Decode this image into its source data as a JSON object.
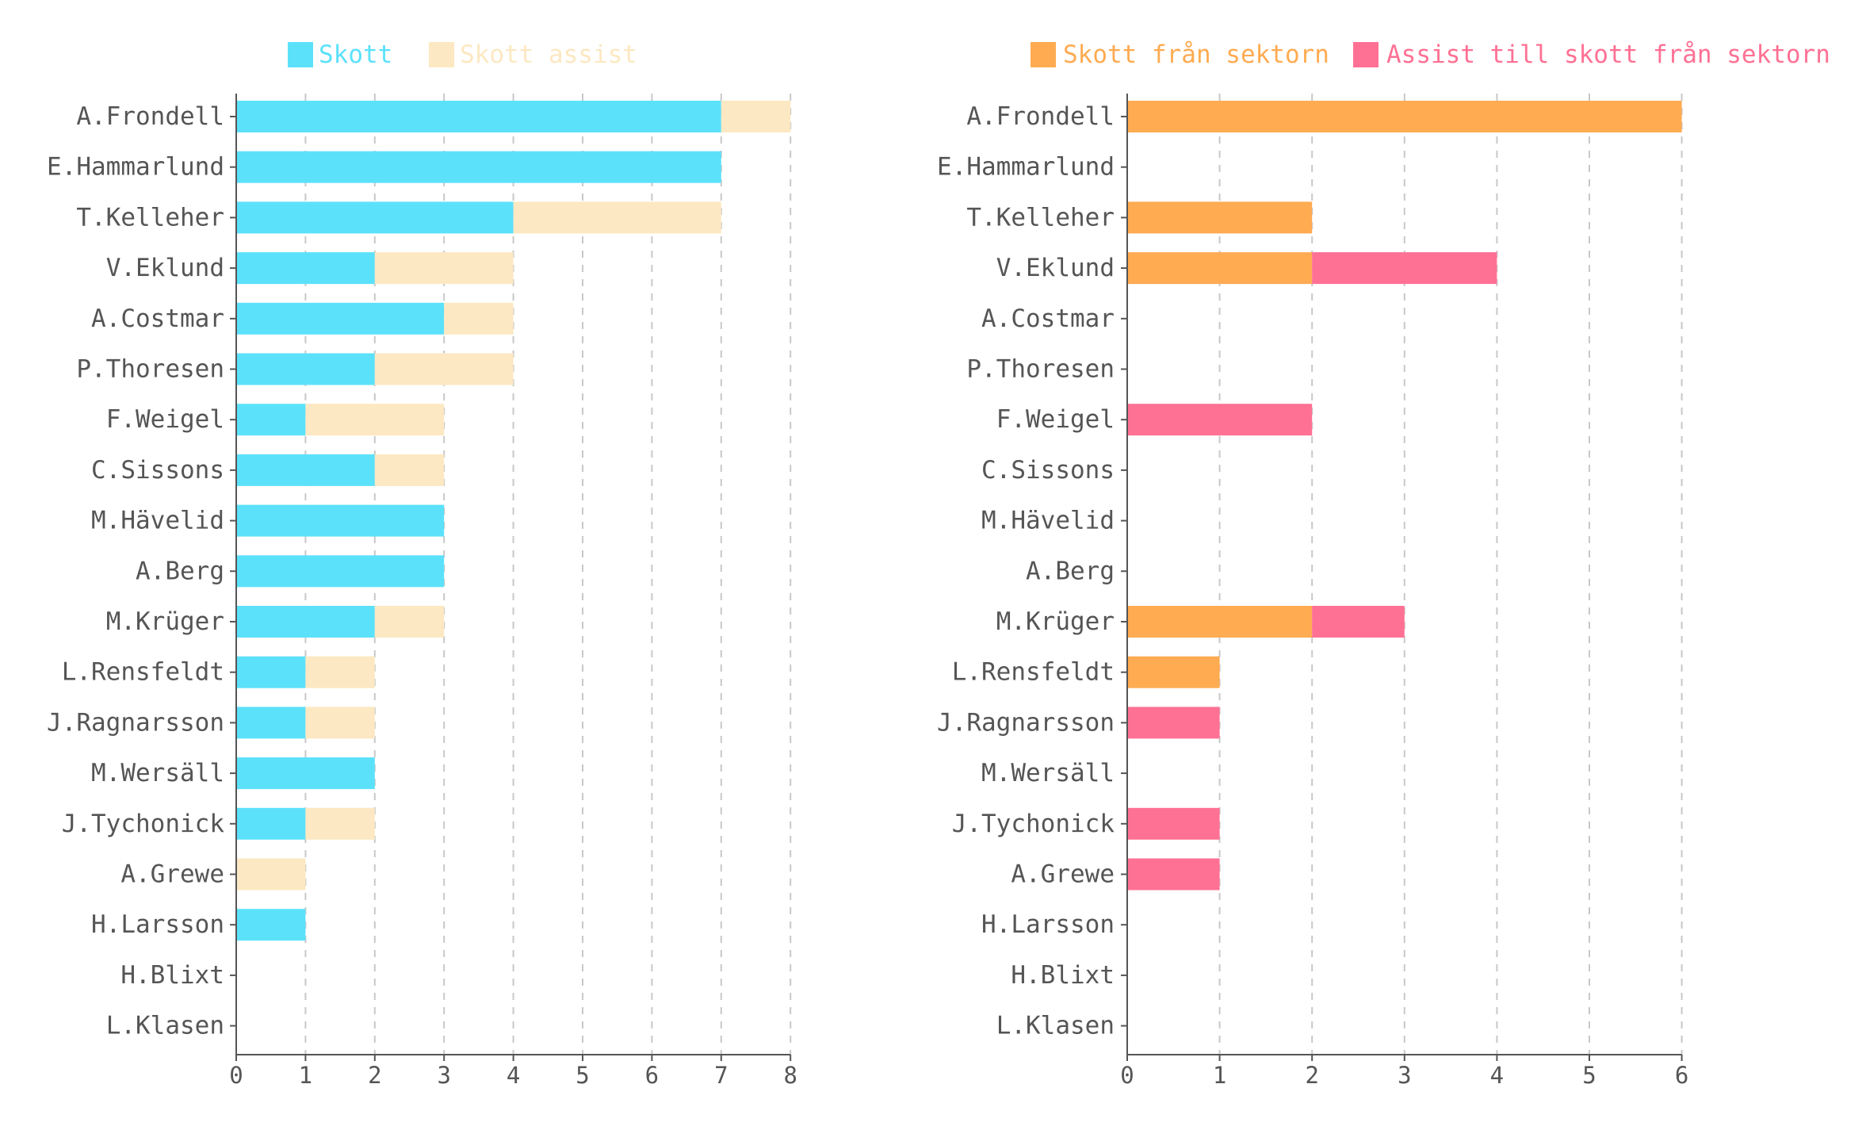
{
  "chart_data": [
    {
      "type": "bar",
      "orientation": "horizontal",
      "stacked": true,
      "categories": [
        "A.Frondell",
        "E.Hammarlund",
        "T.Kelleher",
        "V.Eklund",
        "A.Costmar",
        "P.Thoresen",
        "F.Weigel",
        "C.Sissons",
        "M.Hävelid",
        "A.Berg",
        "M.Krüger",
        "L.Rensfeldt",
        "J.Ragnarsson",
        "M.Wersäll",
        "J.Tychonick",
        "A.Grewe",
        "H.Larsson",
        "H.Blixt",
        "L.Klasen"
      ],
      "series": [
        {
          "name": "Skott",
          "color": "#5ce1fb",
          "values": [
            7,
            7,
            4,
            2,
            3,
            2,
            1,
            2,
            3,
            3,
            2,
            1,
            1,
            2,
            1,
            0,
            1,
            0,
            0
          ]
        },
        {
          "name": "Skott assist",
          "color": "#fce8c2",
          "values": [
            1,
            0,
            3,
            2,
            1,
            2,
            2,
            1,
            0,
            0,
            1,
            1,
            1,
            0,
            1,
            1,
            0,
            0,
            0
          ]
        }
      ],
      "xlim": [
        0,
        8
      ],
      "xticks": [
        "0",
        "1",
        "2",
        "3",
        "4",
        "5",
        "6",
        "7",
        "8"
      ],
      "grid": "vertical dashed",
      "legend": "top"
    },
    {
      "type": "bar",
      "orientation": "horizontal",
      "stacked": true,
      "categories": [
        "A.Frondell",
        "E.Hammarlund",
        "T.Kelleher",
        "V.Eklund",
        "A.Costmar",
        "P.Thoresen",
        "F.Weigel",
        "C.Sissons",
        "M.Hävelid",
        "A.Berg",
        "M.Krüger",
        "L.Rensfeldt",
        "J.Ragnarsson",
        "M.Wersäll",
        "J.Tychonick",
        "A.Grewe",
        "H.Larsson",
        "H.Blixt",
        "L.Klasen"
      ],
      "series": [
        {
          "name": "Skott från sektorn",
          "color": "#ffab52",
          "values": [
            6,
            0,
            2,
            2,
            0,
            0,
            0,
            0,
            0,
            0,
            2,
            1,
            0,
            0,
            0,
            0,
            0,
            0,
            0
          ]
        },
        {
          "name": "Assist till skott från sektorn",
          "color": "#ff7194",
          "values": [
            0,
            0,
            0,
            2,
            0,
            0,
            2,
            0,
            0,
            0,
            1,
            0,
            1,
            0,
            1,
            1,
            0,
            0,
            0
          ]
        }
      ],
      "xlim": [
        0,
        6
      ],
      "xticks": [
        "0",
        "1",
        "2",
        "3",
        "4",
        "5",
        "6"
      ],
      "grid": "vertical dashed",
      "legend": "top"
    }
  ]
}
